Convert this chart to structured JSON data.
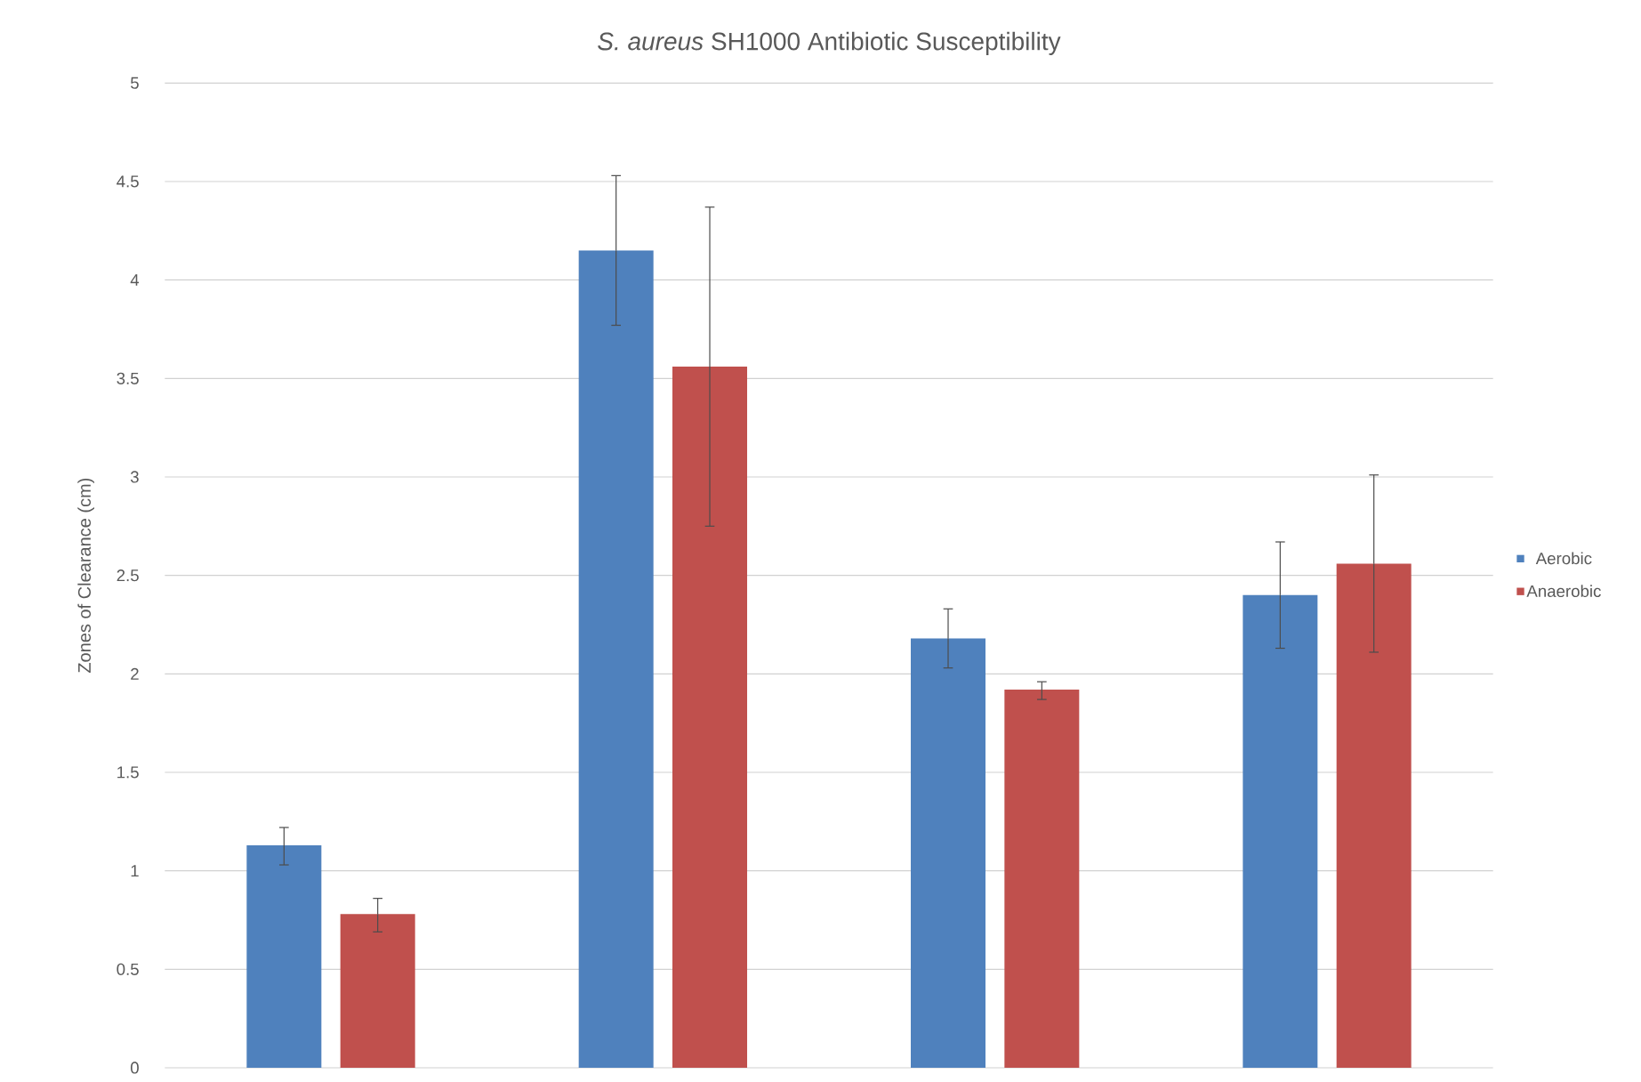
{
  "chart_data": {
    "type": "bar",
    "title": "*S. aureus* SH1000 Antibiotic Susceptibility",
    "ylabel": "Zones of Clearance (cm)",
    "categories": [
      null,
      null,
      null,
      null
    ],
    "series": [
      {
        "name": "Aerobic",
        "color": "#4f81bd",
        "values": [
          1.13,
          4.15,
          2.18,
          2.4
        ],
        "errors": [
          [
            1.03,
            1.22
          ],
          [
            3.77,
            4.53
          ],
          [
            2.03,
            2.33
          ],
          [
            2.13,
            2.67
          ]
        ]
      },
      {
        "name": "Anaerobic",
        "color": "#c0504d",
        "values": [
          0.78,
          3.56,
          1.92,
          2.56
        ],
        "errors": [
          [
            0.69,
            0.86
          ],
          [
            2.75,
            4.37
          ],
          [
            1.87,
            1.96
          ],
          [
            2.11,
            3.01
          ]
        ]
      }
    ],
    "ylim": [
      0,
      5
    ],
    "yticks": [
      0,
      0.5,
      1,
      1.5,
      2,
      2.5,
      3,
      3.5,
      4,
      4.5,
      5
    ],
    "grid": "y",
    "legend": "right"
  }
}
